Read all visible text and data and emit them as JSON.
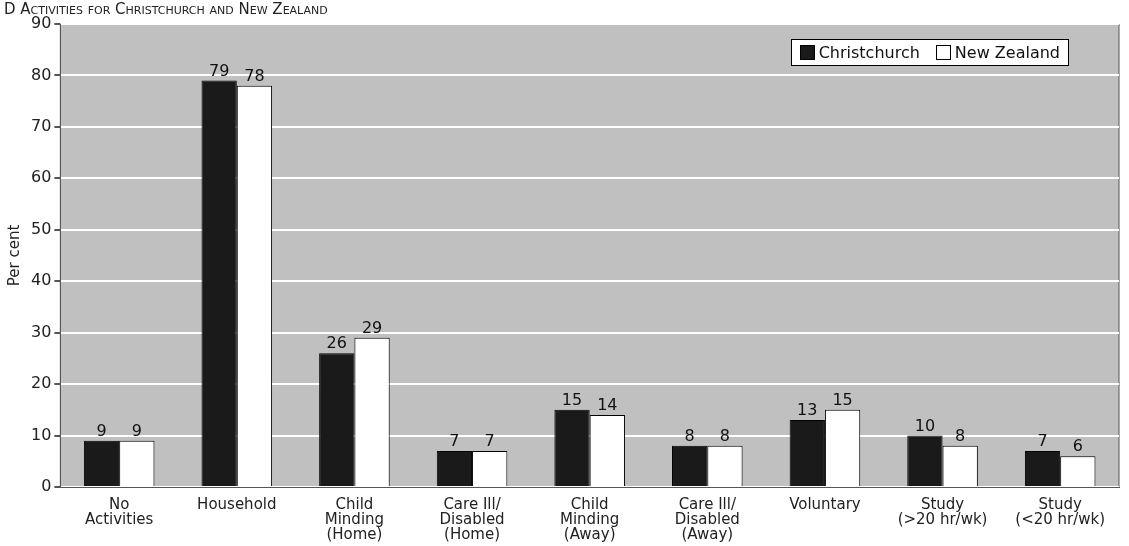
{
  "chart_data": {
    "type": "bar",
    "title": "D Activities for Christchurch and New Zealand",
    "ylabel": "Per cent",
    "categories": [
      "No\nActivities",
      "Household",
      "Child\nMinding\n(Home)",
      "Care Ill/\nDisabled\n(Home)",
      "Child\nMinding\n(Away)",
      "Care Ill/\nDisabled\n(Away)",
      "Voluntary",
      "Study\n(>20 hr/wk)",
      "Study\n(<20 hr/wk)"
    ],
    "series": [
      {
        "name": "Christchurch",
        "color": "#1a1a1a",
        "values": [
          9,
          79,
          26,
          7,
          15,
          8,
          13,
          10,
          7
        ]
      },
      {
        "name": "New Zealand",
        "color": "#ffffff",
        "values": [
          9,
          78,
          29,
          7,
          14,
          8,
          15,
          8,
          6
        ]
      }
    ],
    "ylim": [
      0,
      90
    ],
    "yticks": [
      0,
      10,
      20,
      30,
      40,
      50,
      60,
      70,
      80,
      90
    ],
    "grid": "y",
    "legend": "top right",
    "data_labels": true
  }
}
